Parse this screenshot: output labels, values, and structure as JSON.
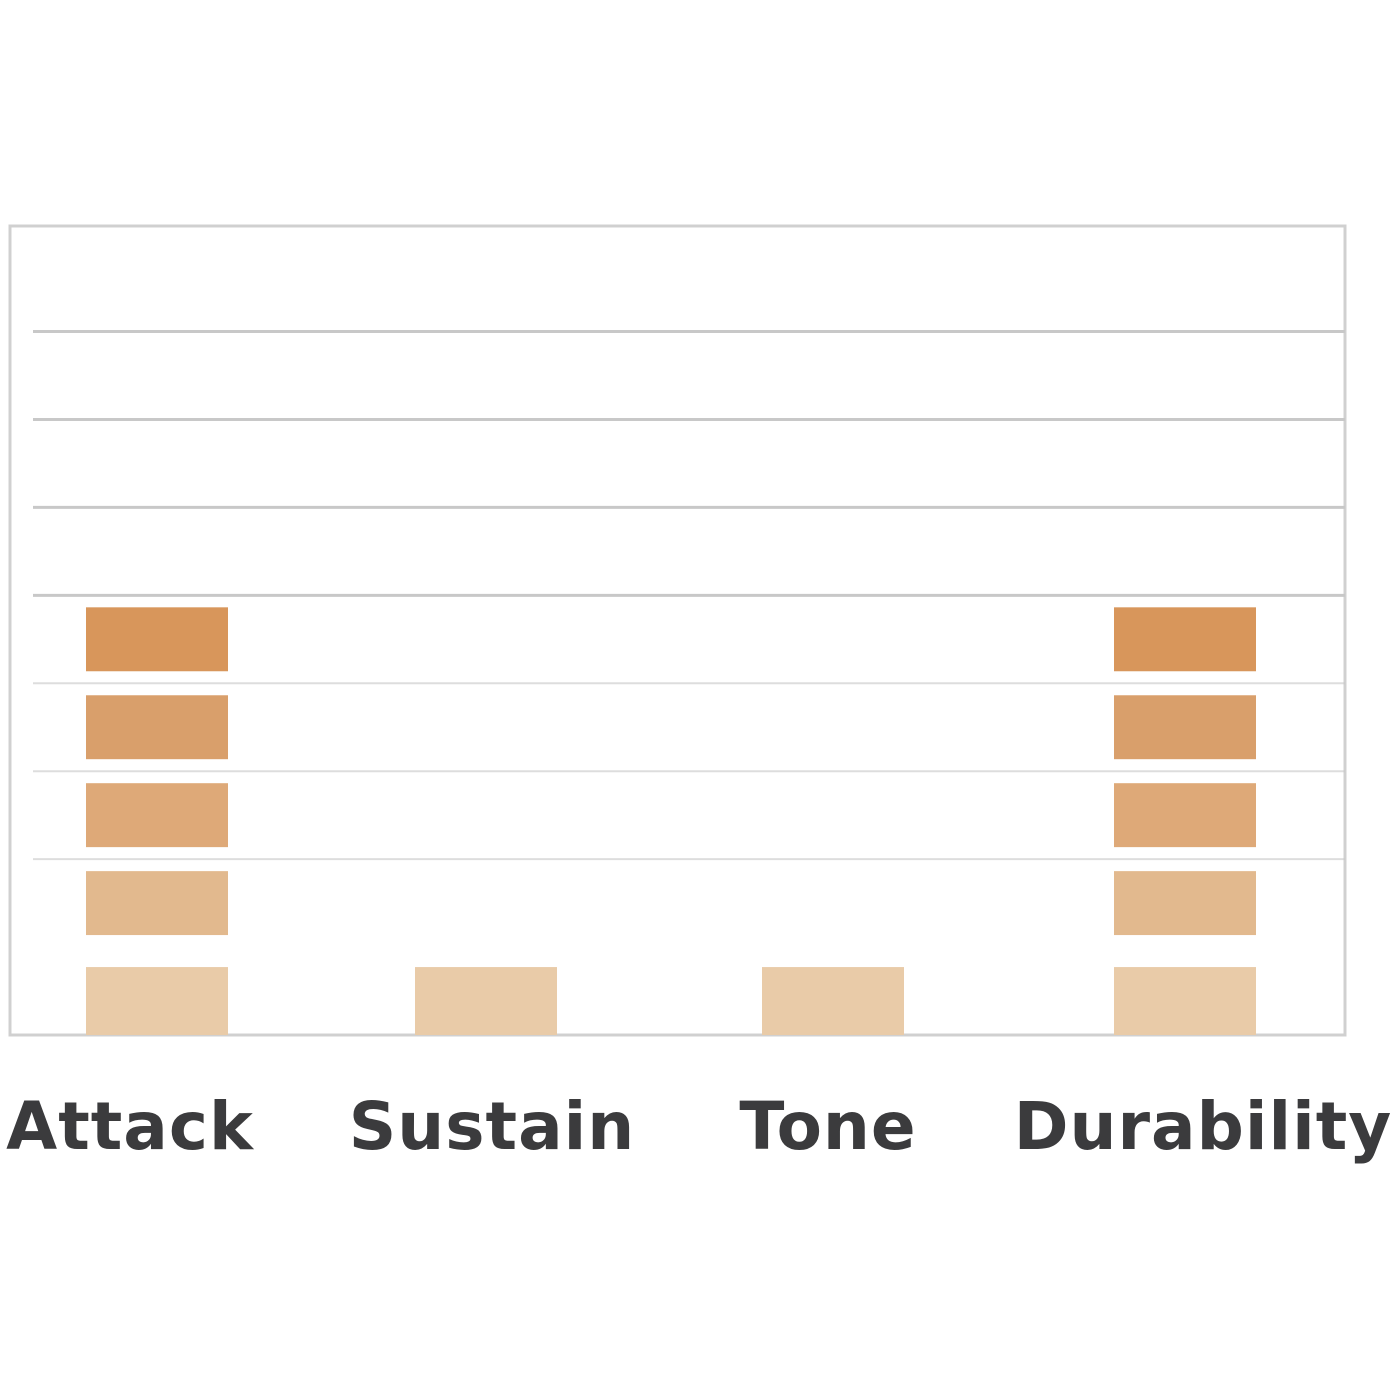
{
  "chart_data": {
    "type": "bar",
    "style": "segmented",
    "categories": [
      "Attack",
      "Sustain",
      "Tone",
      "Durability"
    ],
    "values": [
      5,
      1,
      1,
      5
    ],
    "title": "",
    "xlabel": "",
    "ylabel": "",
    "ylim": [
      0,
      9.2
    ],
    "grid": true,
    "legend": "none",
    "segment_colors": [
      "#e9cba8",
      "#e2b98e",
      "#dea978",
      "#d99f6b",
      "#d8965b"
    ],
    "gridline_color": "#c8c8c8",
    "frame_color": "#d0d0d0",
    "label_color": "#3b3b3d"
  }
}
